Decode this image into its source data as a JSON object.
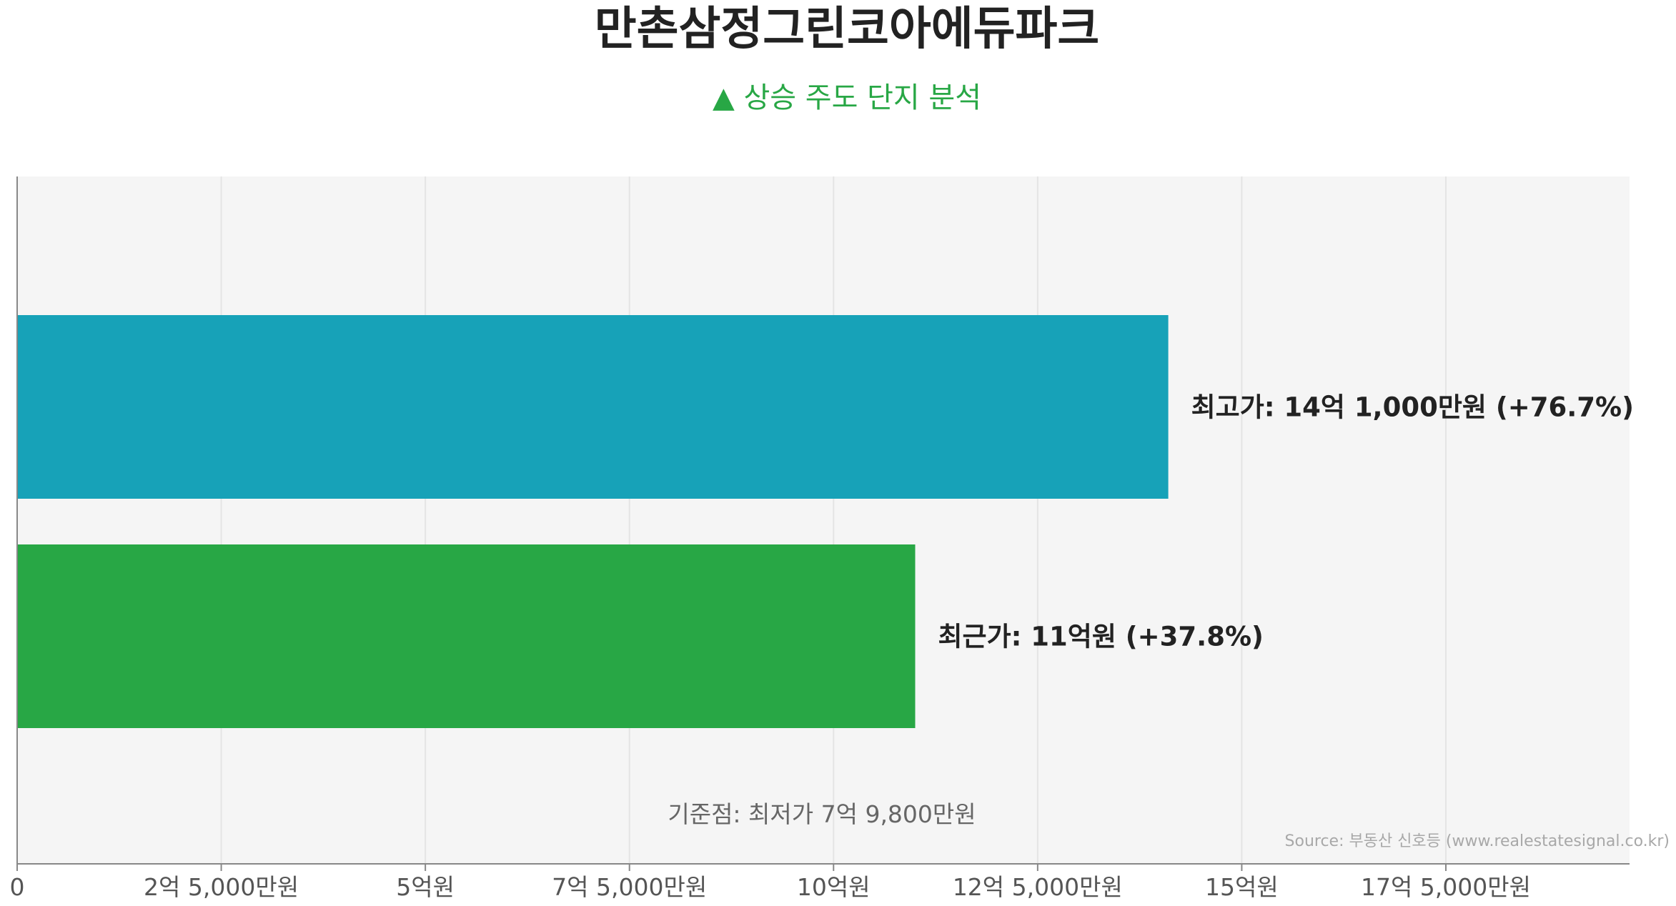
{
  "chart_data": {
    "type": "bar",
    "orientation": "horizontal",
    "title": "만촌삼정그린코아에듀파크",
    "subtitle": "▲ 상승 주도 단지 분석",
    "categories": [
      "최고가",
      "최근가"
    ],
    "series": [
      {
        "values": [
          141000,
          110000
        ],
        "value_unit": "만원",
        "labels": [
          "최고가: 14억 1,000만원 (+76.7%)",
          "최근가: 11억원 (+37.8%)"
        ],
        "colors": [
          "#17a2b8",
          "#28a745"
        ]
      }
    ],
    "x_ticks": [
      {
        "value": 0,
        "label": "0"
      },
      {
        "value": 25000,
        "label": "2억 5,000만원"
      },
      {
        "value": 50000,
        "label": "5억원"
      },
      {
        "value": 75000,
        "label": "7억 5,000만원"
      },
      {
        "value": 100000,
        "label": "10억원"
      },
      {
        "value": 125000,
        "label": "12억 5,000만원"
      },
      {
        "value": 150000,
        "label": "15억원"
      },
      {
        "value": 175000,
        "label": "17억 5,000만원"
      }
    ],
    "xlim": [
      0,
      197500
    ],
    "grid": true,
    "baseline_note": "기준점: 최저가 7억 9,800만원",
    "source": "Source: 부동산 신호등 (www.realestatesignal.co.kr)"
  },
  "colors": {
    "subtitle": "#28a745",
    "plot_background": "#f5f5f5",
    "grid": "#e4e4e4",
    "axis": "#888888"
  }
}
